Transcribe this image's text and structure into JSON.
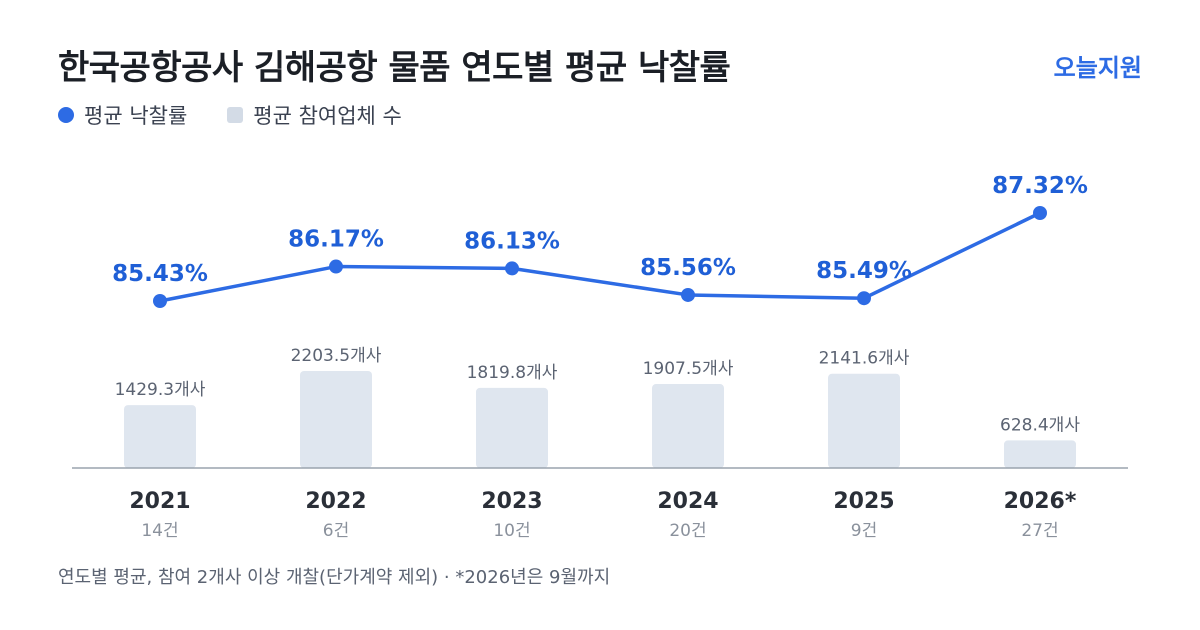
{
  "header": {
    "title": "한국공항공사 김해공항 물품 연도별 평균 낙찰률",
    "brand": "오늘지원"
  },
  "legend": {
    "rate_label": "평균 낙찰률",
    "participants_label": "평균 참여업체 수"
  },
  "footnote": "연도별 평균, 참여 2개사 이상 개찰(단가계약 제외) · *2026년은 9월까지",
  "colors": {
    "line": "#2d6be4",
    "bar": "#dfe6ef",
    "axis": "#9aa3ae"
  },
  "chart_data": {
    "type": "bar+line",
    "categories": [
      "2021",
      "2022",
      "2023",
      "2024",
      "2025",
      "2026*"
    ],
    "counts": [
      "14건",
      "6건",
      "10건",
      "20건",
      "9건",
      "27건"
    ],
    "series": [
      {
        "name": "평균 낙찰률",
        "type": "line",
        "values": [
          85.43,
          86.17,
          86.13,
          85.56,
          85.49,
          87.32
        ],
        "labels": [
          "85.43%",
          "86.17%",
          "86.13%",
          "85.56%",
          "85.49%",
          "87.32%"
        ]
      },
      {
        "name": "평균 참여업체 수",
        "type": "bar",
        "values": [
          1429.3,
          2203.5,
          1819.8,
          1907.5,
          2141.6,
          628.4
        ],
        "labels": [
          "1429.3개사",
          "2203.5개사",
          "1819.8개사",
          "1907.5개사",
          "2141.6개사",
          "628.4개사"
        ]
      }
    ]
  }
}
